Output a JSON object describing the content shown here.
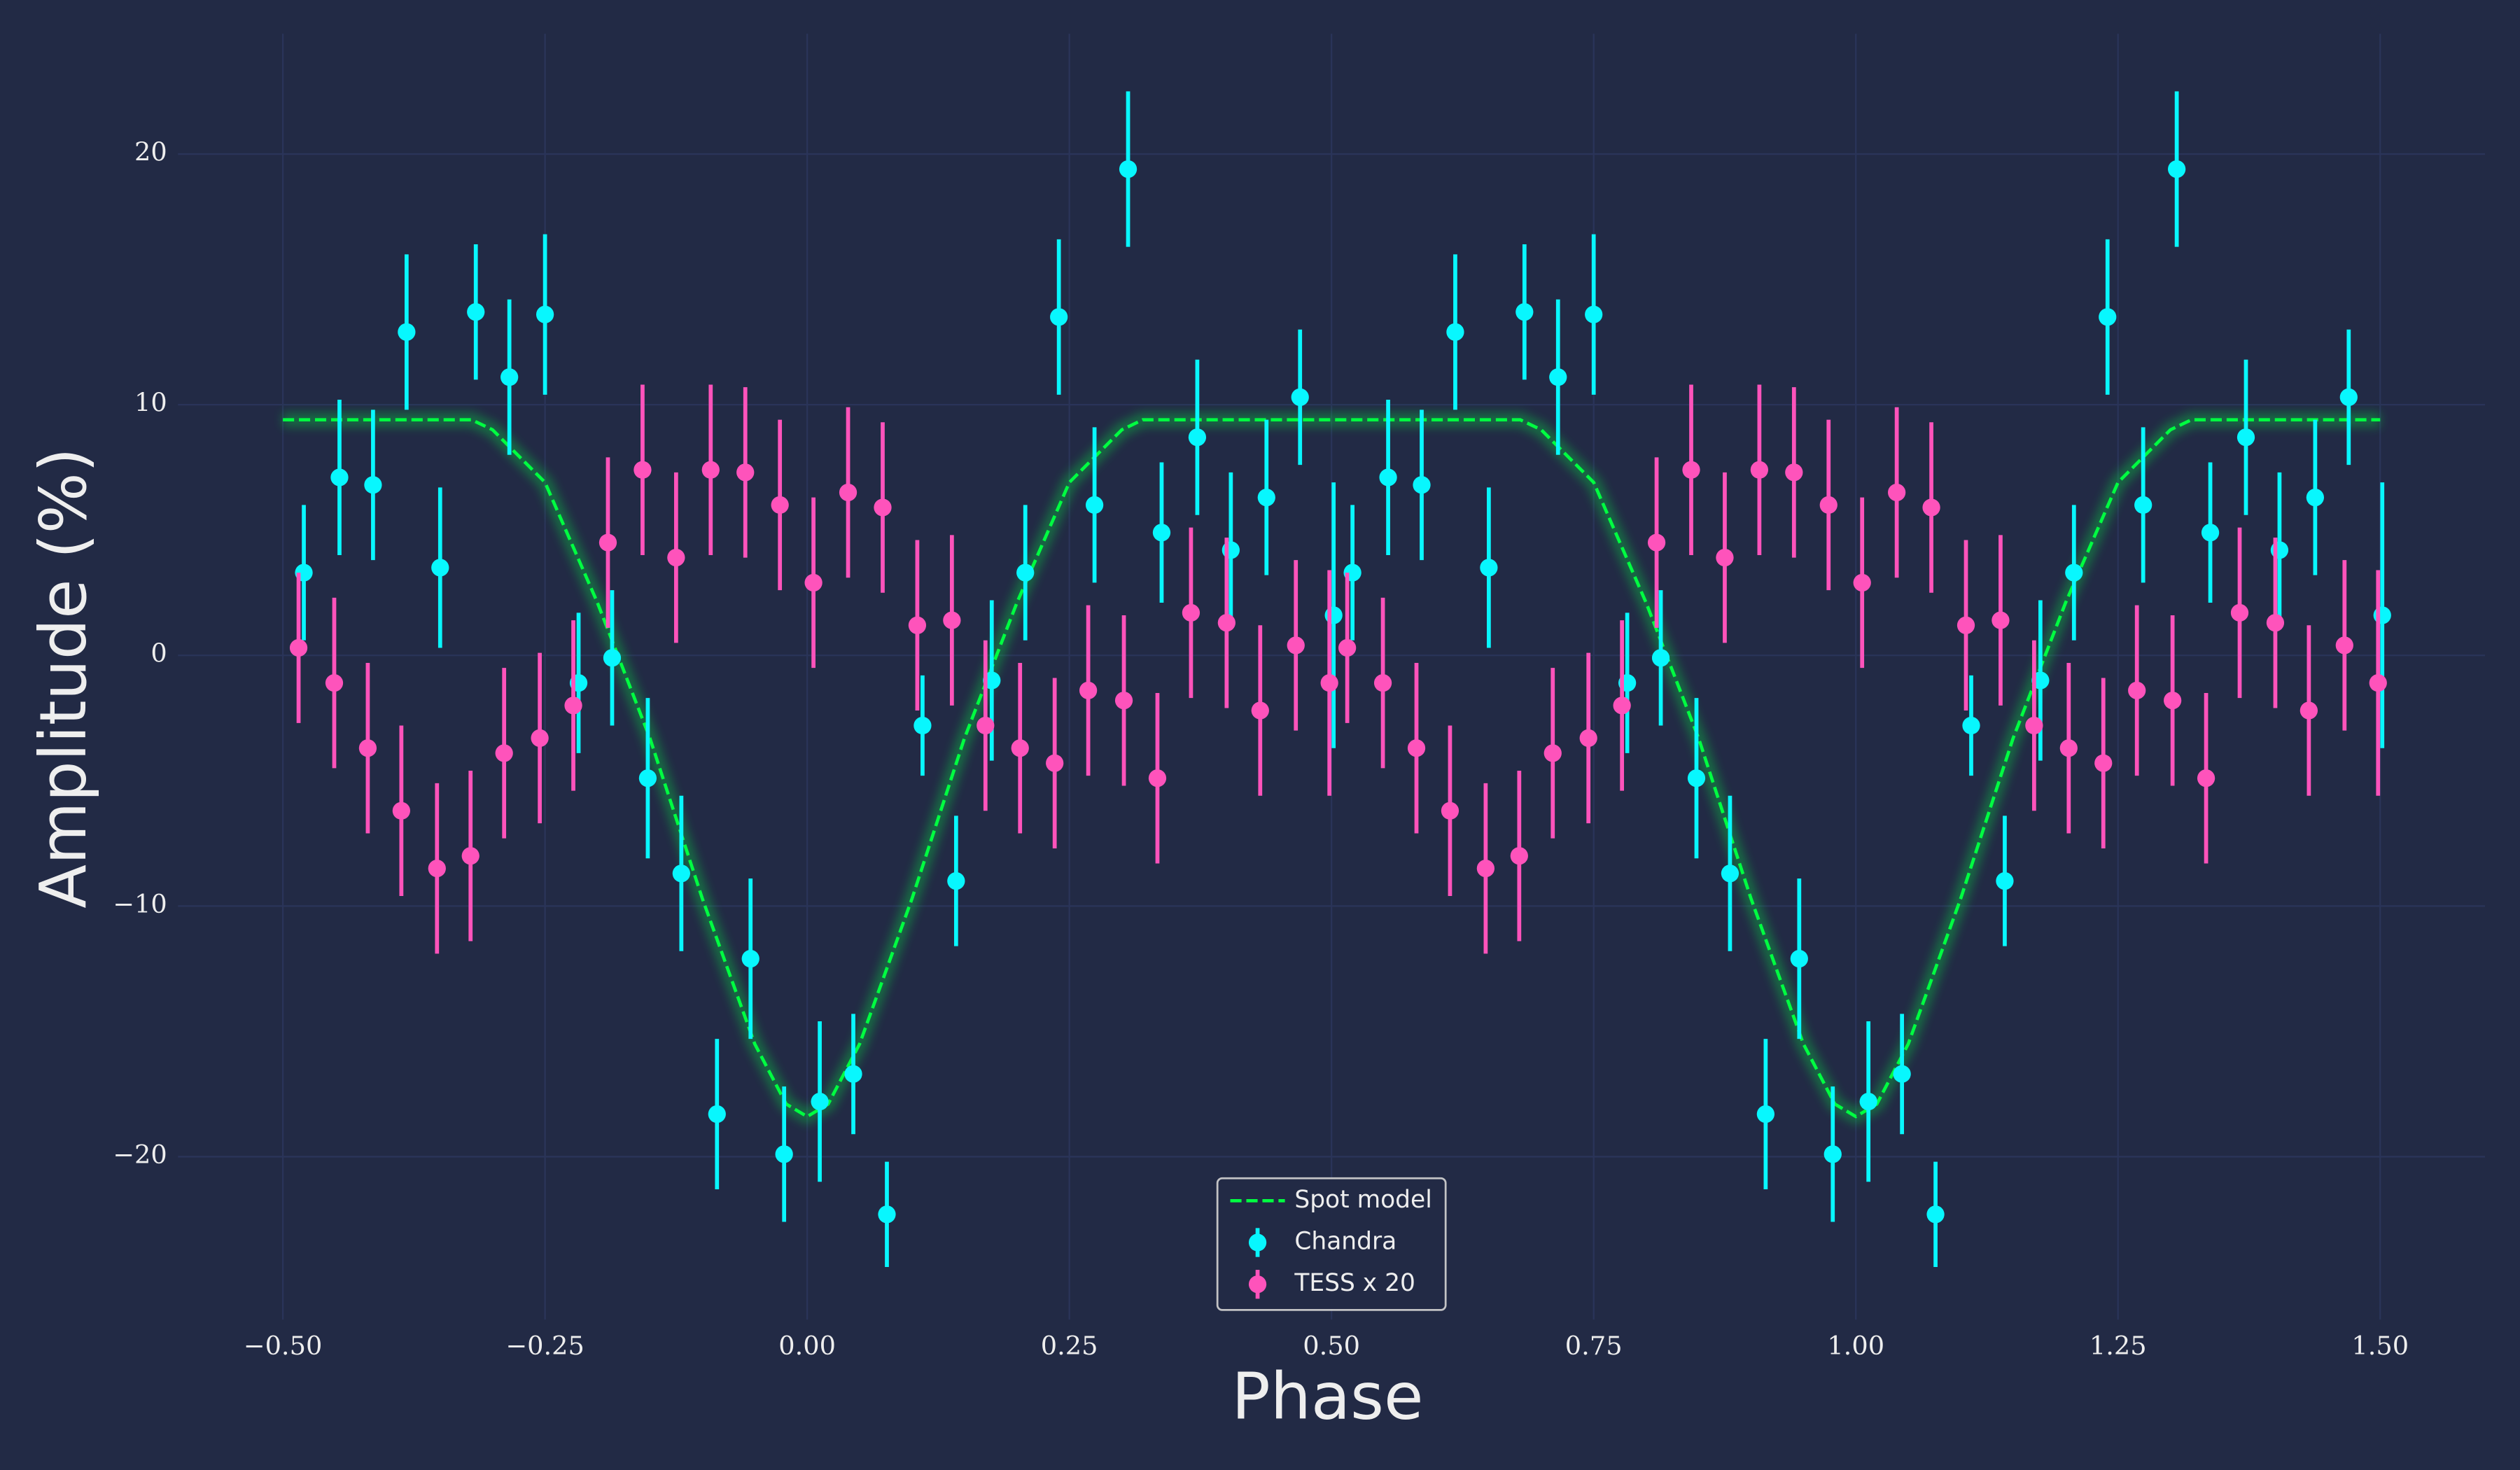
{
  "chart_data": {
    "type": "errorbar",
    "xlabel": "Phase",
    "ylabel": "Amplitude (%)",
    "xlim": [
      -0.6,
      1.6
    ],
    "ylim": [
      -26.5,
      24.8
    ],
    "xticks": [
      {
        "value": -0.5,
        "label": "−0.50"
      },
      {
        "value": -0.25,
        "label": "−0.25"
      },
      {
        "value": 0,
        "label": "0.00"
      },
      {
        "value": 0.25,
        "label": "0.25"
      },
      {
        "value": 0.5,
        "label": "0.50"
      },
      {
        "value": 0.75,
        "label": "0.75"
      },
      {
        "value": 1,
        "label": "1.00"
      },
      {
        "value": 1.25,
        "label": "1.25"
      },
      {
        "value": 1.5,
        "label": "1.50"
      }
    ],
    "yticks": [
      {
        "value": -20,
        "label": "−20"
      },
      {
        "value": -10,
        "label": "−10"
      },
      0,
      10,
      20
    ],
    "grid": true,
    "legend": "lower center",
    "model": {
      "name": "Spot model",
      "color": "#00ff41",
      "x": [
        -0.5,
        -0.4,
        -0.32,
        -0.3,
        -0.25,
        -0.2,
        -0.15,
        -0.1,
        -0.05,
        -0.02,
        0,
        0.02,
        0.05,
        0.1,
        0.15,
        0.2,
        0.25,
        0.3,
        0.32,
        0.4,
        0.5,
        0.6,
        0.68,
        0.7,
        0.75,
        0.8,
        0.85,
        0.9,
        0.95,
        0.98,
        1.0,
        1.02,
        1.05,
        1.1,
        1.15,
        1.2,
        1.25,
        1.3,
        1.32,
        1.4,
        1.5
      ],
      "values": [
        9.4,
        9.4,
        9.4,
        9.0,
        6.9,
        2.1,
        -3.3,
        -9.7,
        -15.5,
        -17.9,
        -18.4,
        -17.9,
        -15.5,
        -9.7,
        -3.3,
        2.1,
        6.9,
        9.0,
        9.4,
        9.4,
        9.4,
        9.4,
        9.4,
        9.0,
        6.9,
        2.1,
        -3.3,
        -9.7,
        -15.5,
        -17.9,
        -18.4,
        -17.9,
        -15.5,
        -9.7,
        -3.3,
        2.1,
        6.9,
        9.0,
        9.4,
        9.4,
        9.4
      ]
    },
    "series": [
      {
        "name": "Chandra",
        "color": "#08f7fe",
        "x": [
          -0.48,
          -0.446,
          -0.414,
          -0.382,
          -0.35,
          -0.316,
          -0.284,
          -0.25,
          -0.218,
          -0.186,
          -0.152,
          -0.12,
          -0.086,
          -0.054,
          -0.022,
          0.012,
          0.044,
          0.076,
          0.11,
          0.142,
          0.176,
          0.208,
          0.24,
          0.274,
          0.306,
          0.338,
          0.372,
          0.404,
          0.438,
          0.47,
          0.502,
          0.52,
          0.554,
          0.586,
          0.618,
          0.65,
          0.684,
          0.716,
          0.75,
          0.782,
          0.814,
          0.848,
          0.88,
          0.914,
          0.946,
          0.978,
          1.012,
          1.044,
          1.076,
          1.11,
          1.142,
          1.176,
          1.208,
          1.24,
          1.274,
          1.306,
          1.338,
          1.372,
          1.404,
          1.438,
          1.47,
          1.502
        ],
        "values": [
          3.3,
          7.1,
          6.8,
          12.9,
          3.5,
          13.7,
          11.1,
          13.6,
          -1.1,
          -0.1,
          -4.9,
          -8.7,
          -18.3,
          -12.1,
          -19.9,
          -17.8,
          -16.7,
          -22.3,
          -2.8,
          -9.0,
          -1.0,
          3.3,
          13.5,
          6.0,
          19.4,
          4.9,
          8.7,
          4.2,
          6.3,
          10.3,
          1.6,
          3.3,
          7.1,
          6.8,
          12.9,
          3.5,
          13.7,
          11.1,
          13.6,
          -1.1,
          -0.1,
          -4.9,
          -8.7,
          -18.3,
          -12.1,
          -19.9,
          -17.8,
          -16.7,
          -22.3,
          -2.8,
          -9.0,
          -1.0,
          3.3,
          13.5,
          6.0,
          19.4,
          4.9,
          8.7,
          4.2,
          6.3,
          10.3,
          1.6
        ],
        "errors": [
          2.7,
          3.1,
          3.0,
          3.1,
          3.2,
          2.7,
          3.1,
          3.2,
          2.8,
          2.7,
          3.2,
          3.1,
          3.0,
          3.2,
          2.7,
          3.2,
          2.4,
          2.1,
          2.0,
          2.6,
          3.2,
          2.7,
          3.1,
          3.1,
          3.1,
          2.8,
          3.1,
          3.1,
          3.1,
          2.7,
          5.3,
          2.7,
          3.1,
          3.0,
          3.1,
          3.2,
          2.7,
          3.1,
          3.2,
          2.8,
          2.7,
          3.2,
          3.1,
          3.0,
          3.2,
          2.7,
          3.2,
          2.4,
          2.1,
          2.0,
          2.6,
          3.2,
          2.7,
          3.1,
          3.1,
          3.1,
          2.8,
          3.1,
          3.1,
          3.1,
          2.7,
          5.3
        ]
      },
      {
        "name": "TESS x 20",
        "color": "#fe53bb",
        "x": [
          -0.485,
          -0.451,
          -0.419,
          -0.387,
          -0.353,
          -0.321,
          -0.289,
          -0.255,
          -0.223,
          -0.19,
          -0.157,
          -0.125,
          -0.092,
          -0.059,
          -0.026,
          0.006,
          0.039,
          0.072,
          0.105,
          0.138,
          0.17,
          0.203,
          0.236,
          0.268,
          0.302,
          0.334,
          0.366,
          0.4,
          0.432,
          0.466,
          0.498,
          0.515,
          0.549,
          0.581,
          0.613,
          0.647,
          0.679,
          0.711,
          0.745,
          0.777,
          0.81,
          0.843,
          0.875,
          0.908,
          0.941,
          0.974,
          1.006,
          1.039,
          1.072,
          1.105,
          1.138,
          1.17,
          1.203,
          1.236,
          1.268,
          1.302,
          1.334,
          1.366,
          1.4,
          1.432,
          1.466,
          1.498
        ],
        "values": [
          0.3,
          -1.1,
          -3.7,
          -6.2,
          -8.5,
          -8.0,
          -3.9,
          -3.3,
          -2.0,
          4.5,
          7.4,
          3.9,
          7.4,
          7.3,
          6.0,
          2.9,
          6.5,
          5.9,
          1.2,
          1.4,
          -2.8,
          -3.7,
          -4.3,
          -1.4,
          -1.8,
          -4.9,
          1.7,
          1.3,
          -2.2,
          0.4,
          -1.1,
          0.3,
          -1.1,
          -3.7,
          -6.2,
          -8.5,
          -8.0,
          -3.9,
          -3.3,
          -2.0,
          4.5,
          7.4,
          3.9,
          7.4,
          7.3,
          6.0,
          2.9,
          6.5,
          5.9,
          1.2,
          1.4,
          -2.8,
          -3.7,
          -4.3,
          -1.4,
          -1.8,
          -4.9,
          1.7,
          1.3,
          -2.2,
          0.4,
          -1.1
        ],
        "errors": [
          3.0,
          3.4,
          3.4,
          3.4,
          3.4,
          3.4,
          3.4,
          3.4,
          3.4,
          3.4,
          3.4,
          3.4,
          3.4,
          3.4,
          3.4,
          3.4,
          3.4,
          3.4,
          3.4,
          3.4,
          3.4,
          3.4,
          3.4,
          3.4,
          3.4,
          3.4,
          3.4,
          3.4,
          3.4,
          3.4,
          4.5,
          3.0,
          3.4,
          3.4,
          3.4,
          3.4,
          3.4,
          3.4,
          3.4,
          3.4,
          3.4,
          3.4,
          3.4,
          3.4,
          3.4,
          3.4,
          3.4,
          3.4,
          3.4,
          3.4,
          3.4,
          3.4,
          3.4,
          3.4,
          3.4,
          3.4,
          3.4,
          3.4,
          3.4,
          3.4,
          3.4,
          4.5
        ]
      }
    ]
  }
}
